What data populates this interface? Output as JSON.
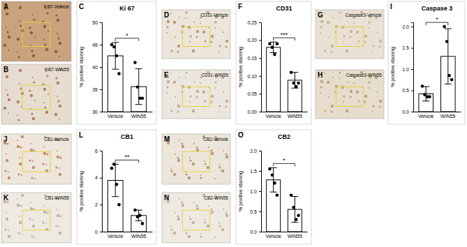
{
  "images": [
    {
      "panel": "A",
      "label": "Ki67-Vehicle"
    },
    {
      "panel": "B",
      "label": "Ki67-WIN55"
    },
    {
      "panel": "D",
      "label": "CD31-Vehicle"
    },
    {
      "panel": "E",
      "label": "CD31-WIN55"
    },
    {
      "panel": "G",
      "label": "Caspase3-Vehicle"
    },
    {
      "panel": "H",
      "label": "Caspase3-WIN55"
    },
    {
      "panel": "J",
      "label": "CB1-Vehicle"
    },
    {
      "panel": "K",
      "label": "CB1-WIN55"
    },
    {
      "panel": "M",
      "label": "CB2-Vehicle"
    },
    {
      "panel": "N",
      "label": "CB2-WIN55"
    }
  ],
  "chart_data": [
    {
      "type": "bar",
      "title": "Ki 67",
      "y_label": "% positive staining",
      "categories": [
        "Vehicle",
        "WIN55"
      ],
      "values": [
        42.5,
        35.6
      ],
      "errors": [
        3,
        4
      ],
      "points": [
        [
          45,
          44.5,
          42.5,
          38.5
        ],
        [
          41,
          35.5,
          33,
          33
        ]
      ],
      "color": "#ffffff",
      "ylim": [
        30,
        50
      ],
      "yticks": [
        30,
        35,
        40,
        45,
        50
      ],
      "annotations": [
        "C",
        "*"
      ]
    },
    {
      "type": "bar",
      "title": "CD31",
      "y_label": "% positive staining",
      "categories": [
        "Vehicle",
        "WIN55"
      ],
      "values": [
        0.18,
        0.088
      ],
      "errors": [
        0.015,
        0.022
      ],
      "points": [
        [
          0.19,
          0.18,
          0.16,
          0.19
        ],
        [
          0.11,
          0.08,
          0.07,
          0.08
        ]
      ],
      "color": "#ffffff",
      "ylim": [
        0,
        0.25
      ],
      "yticks": [
        {
          "value": 0,
          "label": "0.00"
        },
        0.05,
        {
          "value": 0.1,
          "label": "0.10"
        },
        0.15,
        {
          "value": 0.2,
          "label": "0.20"
        },
        0.25
      ],
      "annotations": [
        "F",
        "***"
      ]
    },
    {
      "type": "bar",
      "title": "Caspase 3",
      "y_label": "% positive staining",
      "categories": [
        "Vehicle",
        "WIN55"
      ],
      "values": [
        0.42,
        1.3
      ],
      "errors": [
        0.17,
        0.65
      ],
      "points": [
        [
          0.6,
          0.4,
          0.35,
          0.35
        ],
        [
          2.0,
          1.65,
          0.85,
          0.75
        ]
      ],
      "color": "#ffffff",
      "ylim": [
        0,
        2.1
      ],
      "yticks": [
        {
          "value": 0,
          "label": "0.0"
        },
        0.5,
        {
          "value": 1,
          "label": "1.0"
        },
        1.5,
        {
          "value": 2,
          "label": "2.0"
        }
      ],
      "annotations": [
        "I",
        "*"
      ]
    },
    {
      "type": "bar",
      "title": "CB1",
      "y_label": "% positive staining",
      "categories": [
        "Vehicle",
        "WIN55"
      ],
      "values": [
        3.8,
        1.2
      ],
      "errors": [
        1.2,
        0.4
      ],
      "points": [
        [
          4.7,
          5.0,
          3.5,
          2.0
        ],
        [
          1.6,
          1.1,
          1.2,
          0.6
        ]
      ],
      "color": "#ffffff",
      "ylim": [
        0,
        6
      ],
      "yticks": [
        0,
        2,
        4,
        6
      ],
      "annotations": [
        "L",
        "**"
      ]
    },
    {
      "type": "bar",
      "title": "CB2",
      "y_label": "% positive staining",
      "categories": [
        "Vehicle",
        "WIN55"
      ],
      "values": [
        1.28,
        0.55
      ],
      "errors": [
        0.3,
        0.32
      ],
      "points": [
        [
          1.55,
          1.4,
          1.2,
          0.9
        ],
        [
          0.9,
          0.6,
          0.3,
          0.4
        ]
      ],
      "color": "#ffffff",
      "ylim": [
        0,
        2
      ],
      "yticks": [
        {
          "value": 0,
          "label": "0.0"
        },
        0.5,
        {
          "value": 1,
          "label": "1.0"
        },
        1.5,
        {
          "value": 2,
          "label": "2.0"
        }
      ],
      "annotations": [
        "O",
        "*"
      ]
    }
  ]
}
